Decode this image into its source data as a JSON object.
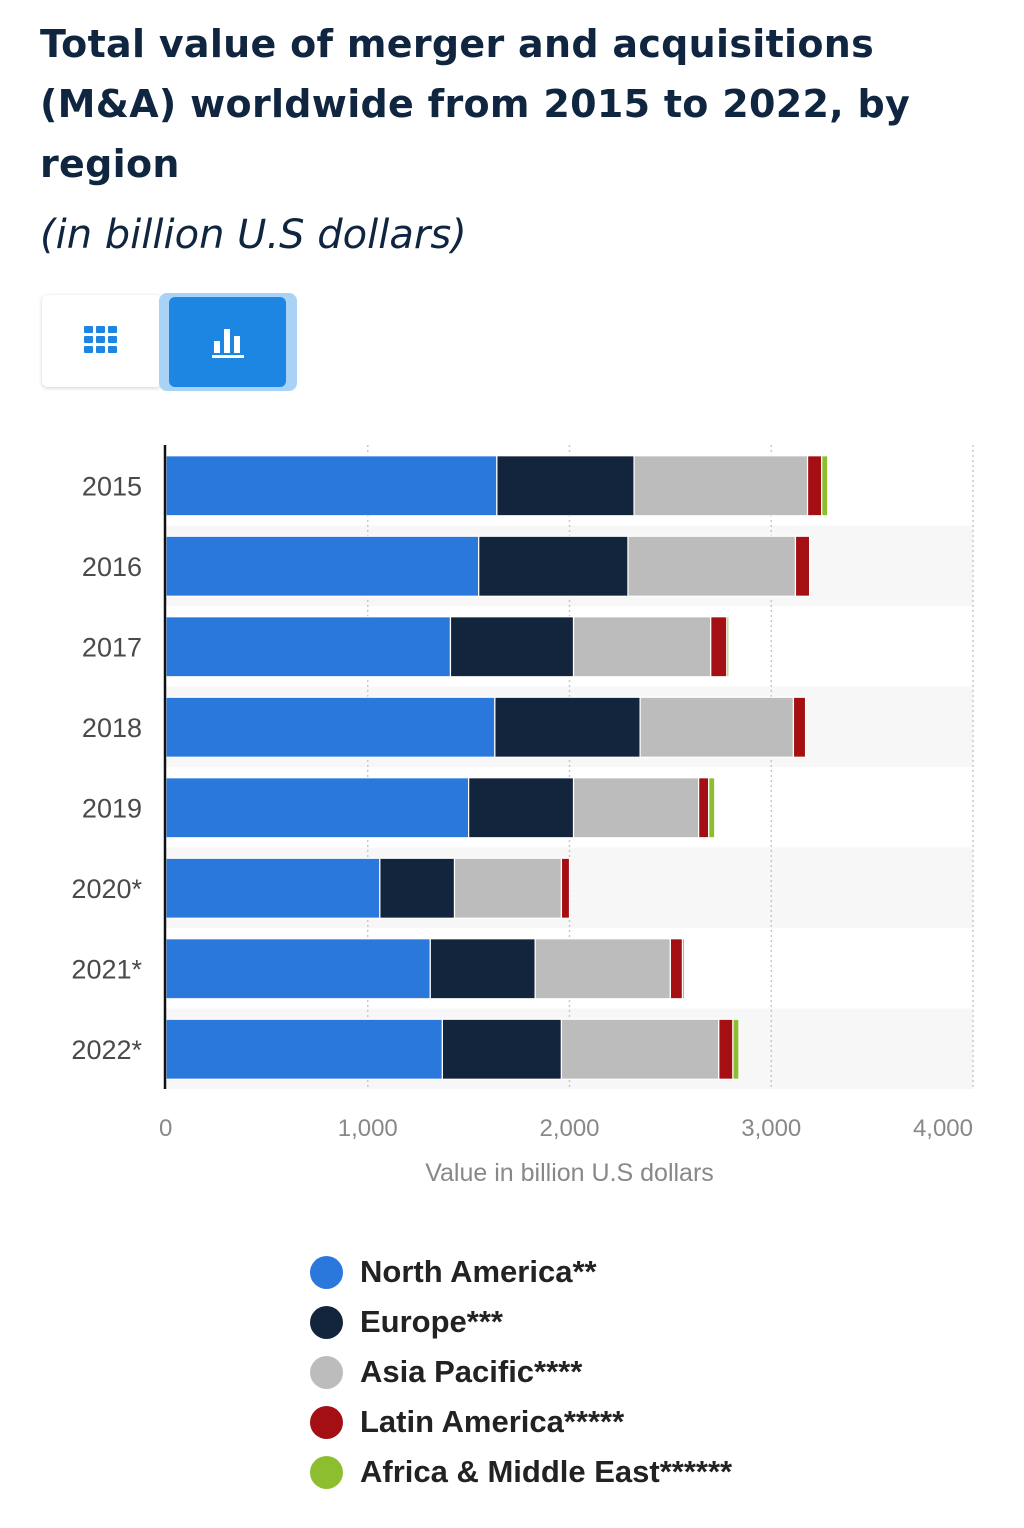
{
  "header": {
    "title": "Total value of merger and acquisitions (M&A) worldwide from 2015 to 2022, by region",
    "subtitle": "(in billion U.S dollars)"
  },
  "view_toggle": {
    "table_icon": "grid-icon",
    "chart_icon": "bar-chart-icon",
    "active": "chart",
    "active_color": "#1d86e3"
  },
  "chart_data": {
    "type": "bar",
    "orientation": "horizontal",
    "stacked": true,
    "categories": [
      "2015",
      "2016",
      "2017",
      "2018",
      "2019",
      "2020*",
      "2021*",
      "2022*"
    ],
    "series": [
      {
        "name": "North America**",
        "color": "#2a78dc",
        "values": [
          1640,
          1550,
          1410,
          1630,
          1500,
          1060,
          1310,
          1370
        ]
      },
      {
        "name": "Europe***",
        "color": "#13243d",
        "values": [
          680,
          740,
          610,
          720,
          520,
          370,
          520,
          590
        ]
      },
      {
        "name": "Asia Pacific****",
        "color": "#bcbcbc",
        "values": [
          860,
          830,
          680,
          760,
          620,
          530,
          670,
          780
        ]
      },
      {
        "name": "Latin America*****",
        "color": "#a30f12",
        "values": [
          70,
          70,
          80,
          60,
          50,
          40,
          60,
          70
        ]
      },
      {
        "name": "Africa & Middle East******",
        "color": "#8dbe2f",
        "values": [
          30,
          0,
          10,
          0,
          30,
          0,
          10,
          30
        ]
      }
    ],
    "xlabel": "Value in billion U.S dollars",
    "ylabel": "",
    "xlim": [
      0,
      4000
    ],
    "xticks": [
      0,
      1000,
      2000,
      3000,
      4000
    ],
    "xtick_labels": [
      "0",
      "1,000",
      "2,000",
      "3,000",
      "4,000"
    ],
    "grid": true,
    "legend_position": "bottom"
  }
}
